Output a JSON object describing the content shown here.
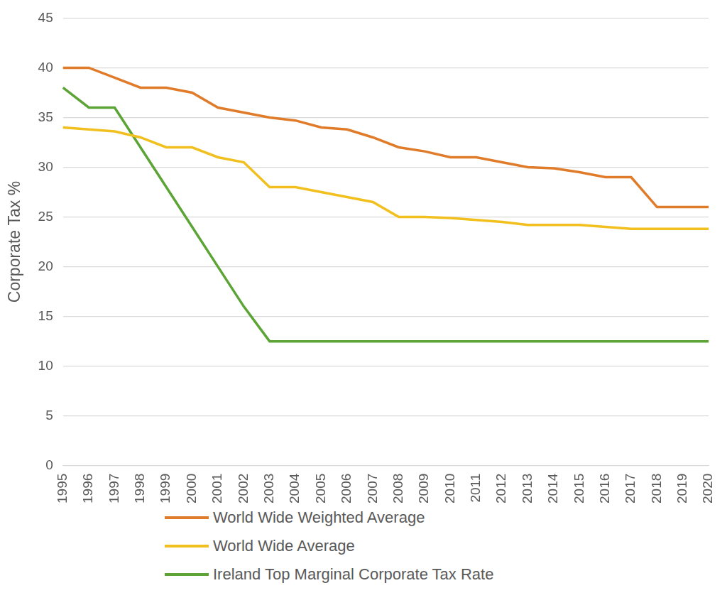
{
  "chart_data": {
    "type": "line",
    "y_label": "Corporate Tax %",
    "categories": [
      "1995",
      "1996",
      "1997",
      "1998",
      "1999",
      "2000",
      "2001",
      "2002",
      "2003",
      "2004",
      "2005",
      "2006",
      "2007",
      "2008",
      "2009",
      "2010",
      "2011",
      "2012",
      "2013",
      "2014",
      "2015",
      "2016",
      "2017",
      "2018",
      "2019",
      "2020"
    ],
    "series": [
      {
        "name": "World Wide Weighted Average",
        "color": "#e07b2a",
        "values": [
          40,
          40,
          39,
          38,
          38,
          37.5,
          36,
          35.5,
          35,
          34.7,
          34,
          33.8,
          33,
          32,
          31.6,
          31,
          31,
          30.5,
          30,
          29.9,
          29.5,
          29,
          29,
          26,
          26,
          26
        ]
      },
      {
        "name": "World Wide Average",
        "color": "#f2c01e",
        "values": [
          34,
          33.8,
          33.6,
          33,
          32,
          32,
          31,
          30.5,
          28,
          28,
          27.5,
          27,
          26.5,
          25,
          25,
          24.9,
          24.7,
          24.5,
          24.2,
          24.2,
          24.2,
          24,
          23.8,
          23.8,
          23.8,
          23.8
        ]
      },
      {
        "name": "Ireland Top Marginal Corporate Tax Rate",
        "color": "#5ca436",
        "values": [
          38,
          36,
          36,
          32,
          28,
          24,
          20,
          16,
          12.5,
          12.5,
          12.5,
          12.5,
          12.5,
          12.5,
          12.5,
          12.5,
          12.5,
          12.5,
          12.5,
          12.5,
          12.5,
          12.5,
          12.5,
          12.5,
          12.5,
          12.5
        ]
      }
    ],
    "ylim": [
      0,
      45
    ],
    "yticks": [
      0,
      5,
      10,
      15,
      20,
      25,
      30,
      35,
      40,
      45
    ],
    "grid": true,
    "legend": "bottom"
  }
}
